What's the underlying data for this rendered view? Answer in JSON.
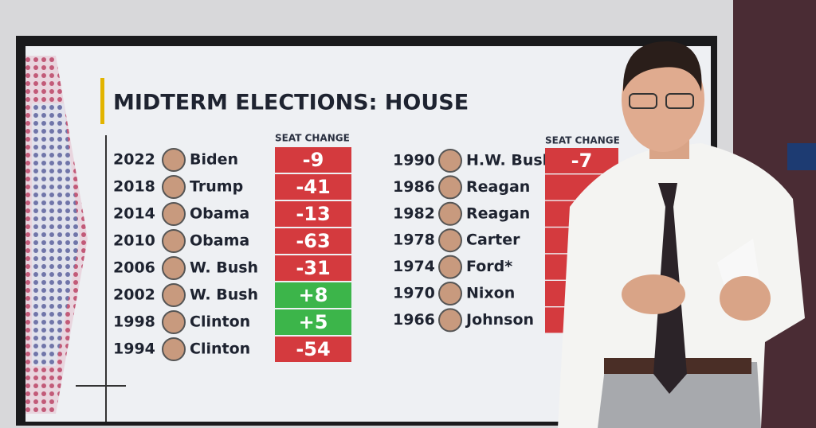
{
  "header": {
    "title": "MIDTERM ELECTIONS: HOUSE"
  },
  "left_table": {
    "column_header": "SEAT CHANGE",
    "rows": [
      {
        "year": "2022",
        "president": "Biden",
        "change": "-9"
      },
      {
        "year": "2018",
        "president": "Trump",
        "change": "-41"
      },
      {
        "year": "2014",
        "president": "Obama",
        "change": "-13"
      },
      {
        "year": "2010",
        "president": "Obama",
        "change": "-63"
      },
      {
        "year": "2006",
        "president": "W. Bush",
        "change": "-31"
      },
      {
        "year": "2002",
        "president": "W. Bush",
        "change": "+8"
      },
      {
        "year": "1998",
        "president": "Clinton",
        "change": "+5"
      },
      {
        "year": "1994",
        "president": "Clinton",
        "change": "-54"
      }
    ]
  },
  "right_table": {
    "column_header": "SEAT CHANGE",
    "rows": [
      {
        "year": "1990",
        "president": "H.W. Bush",
        "change": "-7"
      },
      {
        "year": "1986",
        "president": "Reagan"
      },
      {
        "year": "1982",
        "president": "Reagan"
      },
      {
        "year": "1978",
        "president": "Carter"
      },
      {
        "year": "1974",
        "president": "Ford*"
      },
      {
        "year": "1970",
        "president": "Nixon"
      },
      {
        "year": "1966",
        "president": "Johnson"
      }
    ]
  }
}
